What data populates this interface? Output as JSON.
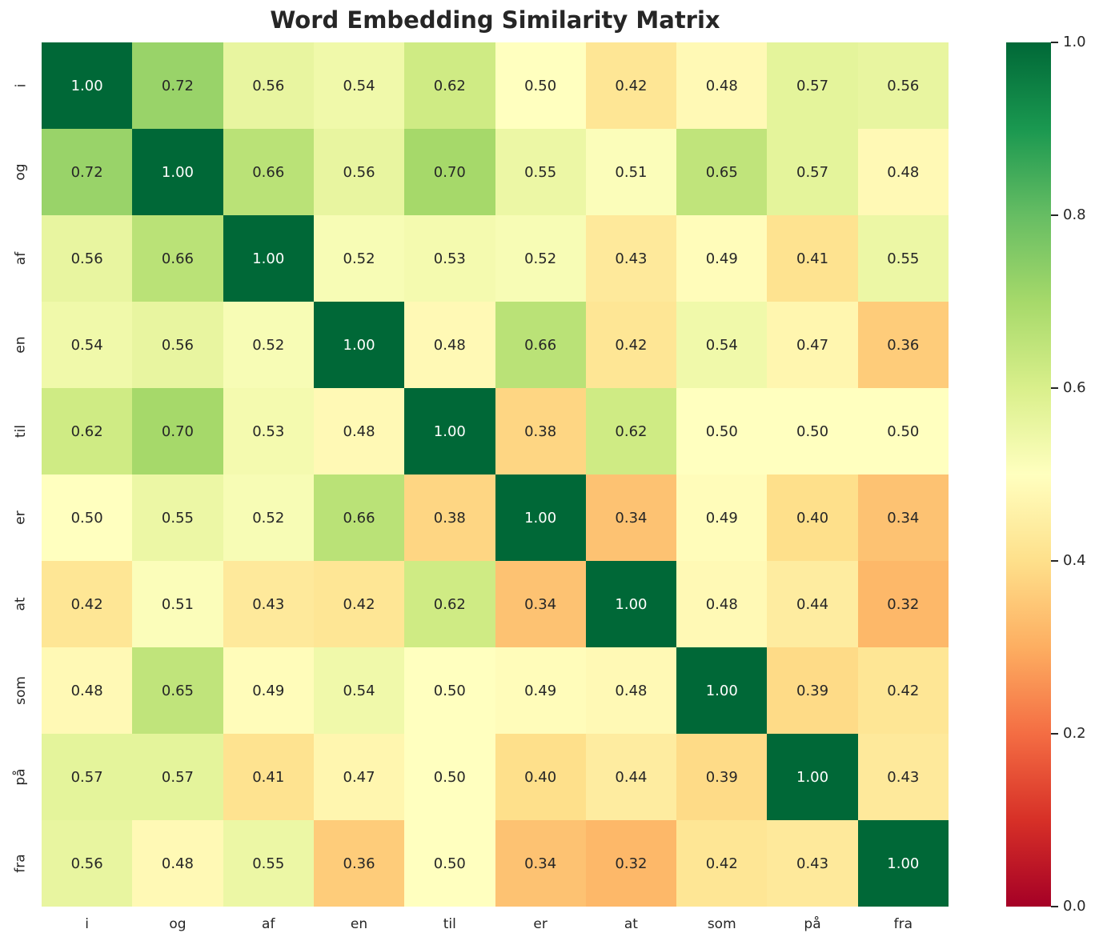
{
  "title": "Word Embedding Similarity Matrix",
  "chart_data": {
    "type": "heatmap",
    "categories": [
      "i",
      "og",
      "af",
      "en",
      "til",
      "er",
      "at",
      "som",
      "på",
      "fra"
    ],
    "matrix": [
      [
        1.0,
        0.72,
        0.56,
        0.54,
        0.62,
        0.5,
        0.42,
        0.48,
        0.57,
        0.56
      ],
      [
        0.72,
        1.0,
        0.66,
        0.56,
        0.7,
        0.55,
        0.51,
        0.65,
        0.57,
        0.48
      ],
      [
        0.56,
        0.66,
        1.0,
        0.52,
        0.53,
        0.52,
        0.43,
        0.49,
        0.41,
        0.55
      ],
      [
        0.54,
        0.56,
        0.52,
        1.0,
        0.48,
        0.66,
        0.42,
        0.54,
        0.47,
        0.36
      ],
      [
        0.62,
        0.7,
        0.53,
        0.48,
        1.0,
        0.38,
        0.62,
        0.5,
        0.5,
        0.5
      ],
      [
        0.5,
        0.55,
        0.52,
        0.66,
        0.38,
        1.0,
        0.34,
        0.49,
        0.4,
        0.34
      ],
      [
        0.42,
        0.51,
        0.43,
        0.42,
        0.62,
        0.34,
        1.0,
        0.48,
        0.44,
        0.32
      ],
      [
        0.48,
        0.65,
        0.49,
        0.54,
        0.5,
        0.49,
        0.48,
        1.0,
        0.39,
        0.42
      ],
      [
        0.57,
        0.57,
        0.41,
        0.47,
        0.5,
        0.4,
        0.44,
        0.39,
        1.0,
        0.43
      ],
      [
        0.56,
        0.48,
        0.55,
        0.36,
        0.5,
        0.34,
        0.32,
        0.42,
        0.43,
        1.0
      ]
    ],
    "value_decimals": 2,
    "vmin": 0.0,
    "vmax": 1.0,
    "colormap": "RdYlGn",
    "colormap_stops": [
      "#a50026",
      "#d73027",
      "#f46d43",
      "#fdae61",
      "#fee08b",
      "#ffffbf",
      "#d9ef8b",
      "#a6d96a",
      "#66bd63",
      "#1a9850",
      "#006837"
    ],
    "colorbar_ticks": [
      1.0,
      0.8,
      0.6,
      0.4,
      0.2,
      0.0
    ],
    "colorbar_tick_decimals": 1,
    "annotation_color_dark": "#262626",
    "annotation_color_light": "#ffffff",
    "background": "#ffffff",
    "legend_position": "right-colorbar",
    "grid": false
  }
}
